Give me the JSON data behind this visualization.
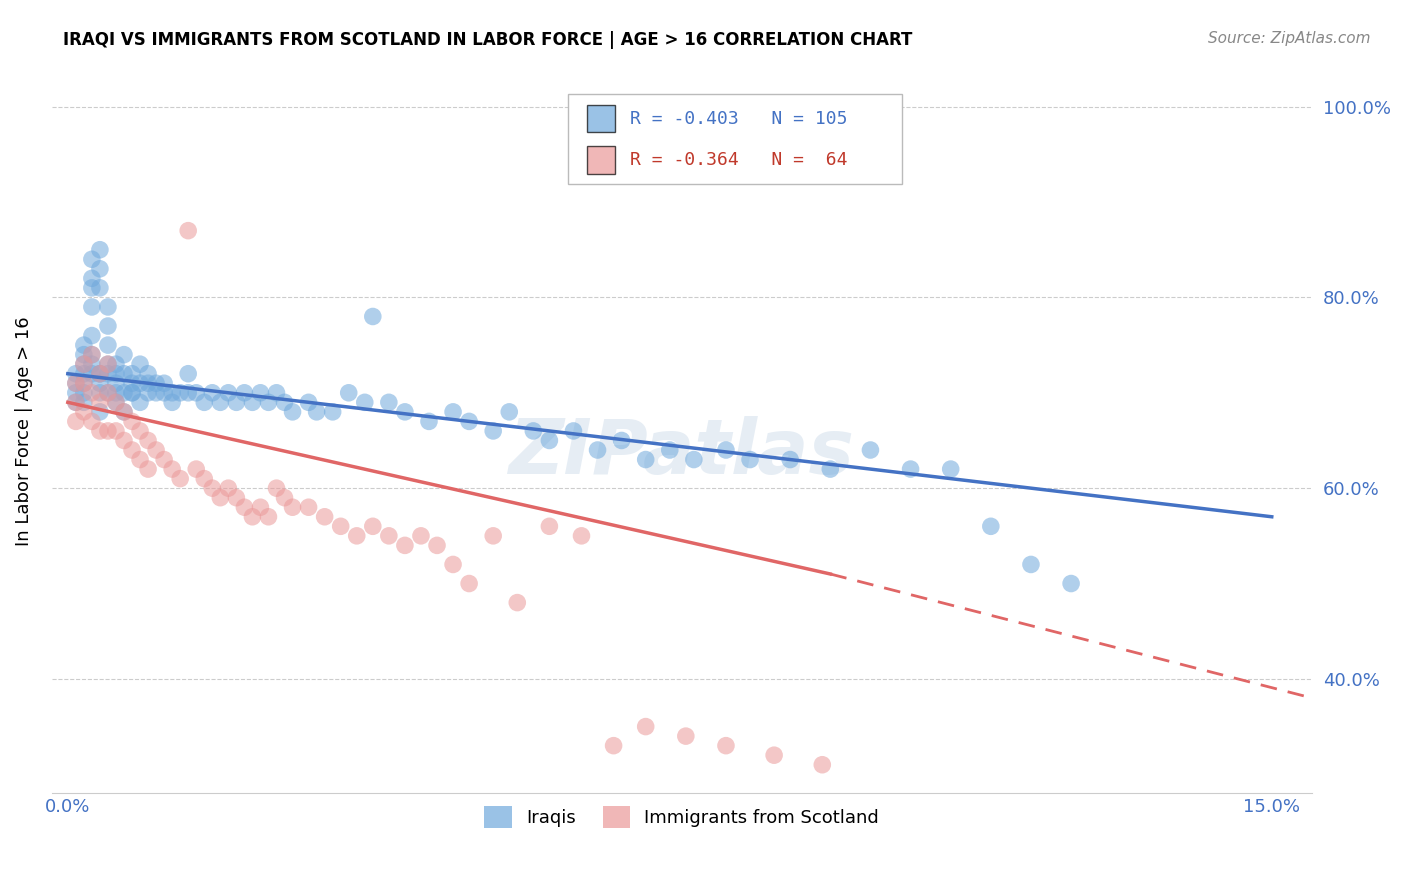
{
  "title": "IRAQI VS IMMIGRANTS FROM SCOTLAND IN LABOR FORCE | AGE > 16 CORRELATION CHART",
  "source": "Source: ZipAtlas.com",
  "ylabel": "In Labor Force | Age > 16",
  "x_min": 0.0,
  "x_max": 0.15,
  "y_min": 0.28,
  "y_max": 1.04,
  "iraqi_color": "#6fa8dc",
  "scotland_color": "#ea9999",
  "iraqi_line_color": "#4472c4",
  "scotland_line_color": "#e06666",
  "iraqi_R": -0.403,
  "iraqi_N": 105,
  "scotland_R": -0.364,
  "scotland_N": 64,
  "legend_label_iraqi": "Iraqis",
  "legend_label_scotland": "Immigrants from Scotland",
  "watermark": "ZIPatlas",
  "iraqi_scatter_x": [
    0.001,
    0.001,
    0.001,
    0.001,
    0.002,
    0.002,
    0.002,
    0.002,
    0.002,
    0.002,
    0.003,
    0.003,
    0.003,
    0.003,
    0.003,
    0.003,
    0.003,
    0.004,
    0.004,
    0.004,
    0.004,
    0.004,
    0.004,
    0.004,
    0.005,
    0.005,
    0.005,
    0.005,
    0.005,
    0.005,
    0.006,
    0.006,
    0.006,
    0.006,
    0.007,
    0.007,
    0.007,
    0.007,
    0.008,
    0.008,
    0.008,
    0.009,
    0.009,
    0.009,
    0.01,
    0.01,
    0.01,
    0.011,
    0.011,
    0.012,
    0.012,
    0.013,
    0.013,
    0.014,
    0.015,
    0.015,
    0.016,
    0.017,
    0.018,
    0.019,
    0.02,
    0.021,
    0.022,
    0.023,
    0.024,
    0.025,
    0.026,
    0.027,
    0.028,
    0.03,
    0.031,
    0.033,
    0.035,
    0.037,
    0.038,
    0.04,
    0.042,
    0.045,
    0.048,
    0.05,
    0.053,
    0.055,
    0.058,
    0.06,
    0.063,
    0.066,
    0.069,
    0.072,
    0.075,
    0.078,
    0.082,
    0.085,
    0.09,
    0.095,
    0.1,
    0.105,
    0.11,
    0.115,
    0.12,
    0.125,
    0.002,
    0.003,
    0.004,
    0.006,
    0.008
  ],
  "iraqi_scatter_y": [
    0.71,
    0.7,
    0.72,
    0.69,
    0.74,
    0.72,
    0.71,
    0.7,
    0.73,
    0.69,
    0.84,
    0.82,
    0.81,
    0.79,
    0.76,
    0.74,
    0.72,
    0.85,
    0.83,
    0.81,
    0.72,
    0.7,
    0.68,
    0.71,
    0.79,
    0.77,
    0.75,
    0.73,
    0.72,
    0.7,
    0.73,
    0.72,
    0.7,
    0.69,
    0.74,
    0.72,
    0.7,
    0.68,
    0.72,
    0.71,
    0.7,
    0.73,
    0.71,
    0.69,
    0.72,
    0.71,
    0.7,
    0.71,
    0.7,
    0.71,
    0.7,
    0.7,
    0.69,
    0.7,
    0.72,
    0.7,
    0.7,
    0.69,
    0.7,
    0.69,
    0.7,
    0.69,
    0.7,
    0.69,
    0.7,
    0.69,
    0.7,
    0.69,
    0.68,
    0.69,
    0.68,
    0.68,
    0.7,
    0.69,
    0.78,
    0.69,
    0.68,
    0.67,
    0.68,
    0.67,
    0.66,
    0.68,
    0.66,
    0.65,
    0.66,
    0.64,
    0.65,
    0.63,
    0.64,
    0.63,
    0.64,
    0.63,
    0.63,
    0.62,
    0.64,
    0.62,
    0.62,
    0.56,
    0.52,
    0.5,
    0.75,
    0.73,
    0.72,
    0.71,
    0.7
  ],
  "scotland_scatter_x": [
    0.001,
    0.001,
    0.001,
    0.002,
    0.002,
    0.002,
    0.003,
    0.003,
    0.003,
    0.004,
    0.004,
    0.004,
    0.005,
    0.005,
    0.005,
    0.006,
    0.006,
    0.007,
    0.007,
    0.008,
    0.008,
    0.009,
    0.009,
    0.01,
    0.01,
    0.011,
    0.012,
    0.013,
    0.014,
    0.015,
    0.016,
    0.017,
    0.018,
    0.019,
    0.02,
    0.021,
    0.022,
    0.023,
    0.024,
    0.025,
    0.026,
    0.027,
    0.028,
    0.03,
    0.032,
    0.034,
    0.036,
    0.038,
    0.04,
    0.042,
    0.044,
    0.046,
    0.048,
    0.05,
    0.053,
    0.056,
    0.06,
    0.064,
    0.068,
    0.072,
    0.077,
    0.082,
    0.088,
    0.094
  ],
  "scotland_scatter_y": [
    0.71,
    0.69,
    0.67,
    0.73,
    0.71,
    0.68,
    0.74,
    0.7,
    0.67,
    0.72,
    0.69,
    0.66,
    0.73,
    0.7,
    0.66,
    0.69,
    0.66,
    0.68,
    0.65,
    0.67,
    0.64,
    0.66,
    0.63,
    0.65,
    0.62,
    0.64,
    0.63,
    0.62,
    0.61,
    0.87,
    0.62,
    0.61,
    0.6,
    0.59,
    0.6,
    0.59,
    0.58,
    0.57,
    0.58,
    0.57,
    0.6,
    0.59,
    0.58,
    0.58,
    0.57,
    0.56,
    0.55,
    0.56,
    0.55,
    0.54,
    0.55,
    0.54,
    0.52,
    0.5,
    0.55,
    0.48,
    0.56,
    0.55,
    0.33,
    0.35,
    0.34,
    0.33,
    0.32,
    0.31
  ]
}
